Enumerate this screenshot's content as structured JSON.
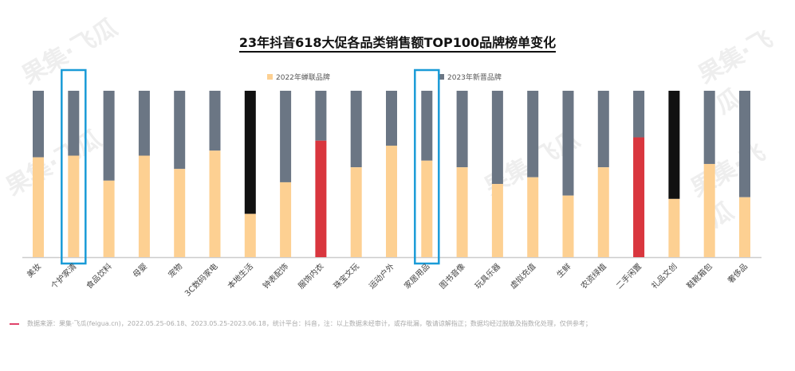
{
  "chart_data": {
    "type": "bar",
    "stacked": true,
    "normalized": true,
    "title": "23年抖音618大促各品类销售额TOP100品牌榜单变化",
    "categories": [
      "美妆",
      "个护家清",
      "食品饮料",
      "母婴",
      "宠物",
      "3C数码家电",
      "本地生活",
      "钟表配饰",
      "服饰内衣",
      "珠宝文玩",
      "运动户外",
      "家居用品",
      "图书音像",
      "玩具乐器",
      "虚拟充值",
      "生鲜",
      "农资绿植",
      "二手闲置",
      "礼品文创",
      "鞋靴箱包",
      "奢侈品"
    ],
    "series": [
      {
        "name": "2022年蝉联品牌",
        "color": "#fdd092",
        "values": [
          0.6,
          0.61,
          0.46,
          0.61,
          0.53,
          0.64,
          0.26,
          0.45,
          0.7,
          0.54,
          0.67,
          0.58,
          0.54,
          0.44,
          0.48,
          0.37,
          0.54,
          0.72,
          0.35,
          0.56,
          0.36
        ]
      },
      {
        "name": "2023年新晋品牌",
        "color": "#6b7684",
        "values": [
          0.4,
          0.39,
          0.54,
          0.39,
          0.47,
          0.36,
          0.74,
          0.55,
          0.3,
          0.46,
          0.33,
          0.42,
          0.46,
          0.56,
          0.52,
          0.63,
          0.46,
          0.28,
          0.65,
          0.44,
          0.64
        ]
      }
    ],
    "highlight_colors": {
      "red": "#d9363e",
      "black": "#111111",
      "box": "#1a9bd7"
    },
    "red_bottom_categories": [
      "服饰内衣",
      "二手闲置"
    ],
    "black_top_categories": [
      "本地生活",
      "礼品文创"
    ],
    "boxed_categories": [
      "个护家清",
      "家居用品"
    ],
    "legend_position": "top",
    "grid": false,
    "ylim": [
      0,
      1
    ]
  },
  "footer": {
    "source": "数据来源：果集·飞瓜(feigua.cn)，2022.05.25-06.18、2023.05.25-2023.06.18，统计平台：抖音，注：以上数据未经审计，或存纰漏，敬请谅解指正；数据均经过脱敏及指数化处理，仅供参考；"
  },
  "watermark": "果集·飞瓜"
}
